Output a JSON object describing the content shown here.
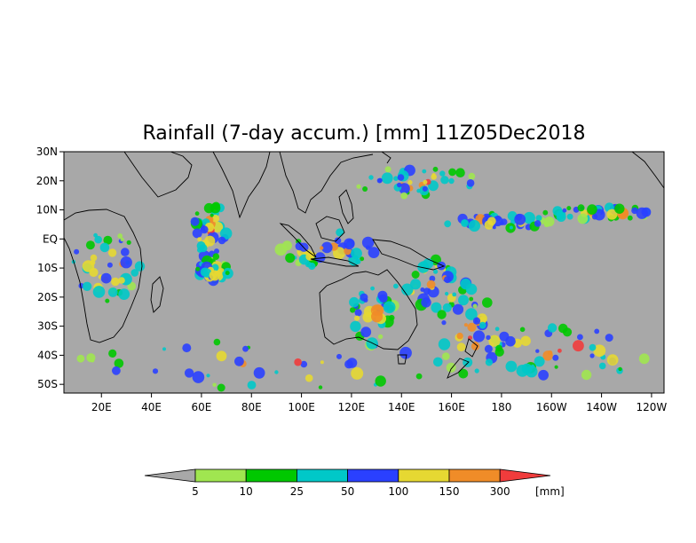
{
  "title": "Rainfall (7-day accum.) [mm] 11Z05Dec2018",
  "map": {
    "lat_range": [
      -53,
      30
    ],
    "lon_range": [
      5,
      245
    ],
    "lat_ticks": [
      {
        "lat": 30,
        "label": "30N"
      },
      {
        "lat": 20,
        "label": "20N"
      },
      {
        "lat": 10,
        "label": "10N"
      },
      {
        "lat": 0,
        "label": "EQ"
      },
      {
        "lat": -10,
        "label": "10S"
      },
      {
        "lat": -20,
        "label": "20S"
      },
      {
        "lat": -30,
        "label": "30S"
      },
      {
        "lat": -40,
        "label": "40S"
      },
      {
        "lat": -50,
        "label": "50S"
      }
    ],
    "lon_ticks": [
      {
        "lon": 20,
        "label": "20E"
      },
      {
        "lon": 40,
        "label": "40E"
      },
      {
        "lon": 60,
        "label": "60E"
      },
      {
        "lon": 80,
        "label": "80E"
      },
      {
        "lon": 100,
        "label": "100E"
      },
      {
        "lon": 120,
        "label": "120E"
      },
      {
        "lon": 140,
        "label": "140E"
      },
      {
        "lon": 160,
        "label": "160E"
      },
      {
        "lon": 180,
        "label": "180"
      },
      {
        "lon": 200,
        "label": "160W"
      },
      {
        "lon": 220,
        "label": "140W"
      },
      {
        "lon": 240,
        "label": "120W"
      }
    ],
    "background_color": "#a8a8a8"
  },
  "colorbar": {
    "colors": [
      "#a8a8a8",
      "#a0e650",
      "#00c800",
      "#00c8c8",
      "#2a40ff",
      "#e6d832",
      "#f08c28",
      "#f03c3c"
    ],
    "labels": [
      "5",
      "10",
      "25",
      "50",
      "100",
      "150",
      "300"
    ],
    "unit": "[mm]"
  }
}
